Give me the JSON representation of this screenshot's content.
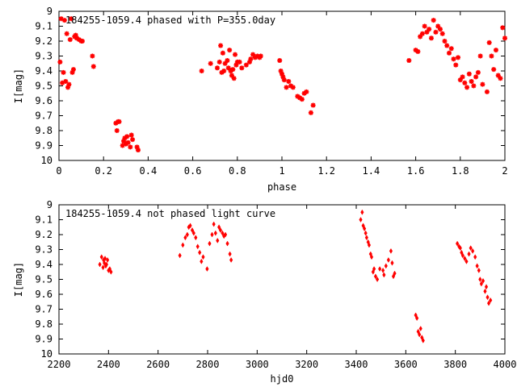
{
  "chart_data": [
    {
      "type": "scatter",
      "title": "184255-1059.4 phased with P=355.0day",
      "xlabel": "phase",
      "ylabel": "I[mag]",
      "xlim": [
        0,
        2
      ],
      "ylim": [
        10,
        9
      ],
      "y_inverted": true,
      "x_ticks": [
        "0",
        "0.2",
        "0.4",
        "0.6",
        "0.8",
        "1",
        "1.2",
        "1.4",
        "1.6",
        "1.8",
        "2"
      ],
      "x_tick_values": [
        0,
        0.2,
        0.4,
        0.6,
        0.8,
        1.0,
        1.2,
        1.4,
        1.6,
        1.8,
        2.0
      ],
      "y_ticks": [
        "9",
        "9.1",
        "9.2",
        "9.3",
        "9.4",
        "9.5",
        "9.6",
        "9.7",
        "9.8",
        "9.9",
        "10"
      ],
      "y_tick_values": [
        9,
        9.1,
        9.2,
        9.3,
        9.4,
        9.5,
        9.6,
        9.7,
        9.8,
        9.9,
        10
      ],
      "grid": false,
      "marker": "cross",
      "color": "#ff0000",
      "x": [
        0.005,
        0.01,
        0.015,
        0.02,
        0.025,
        0.03,
        0.035,
        0.04,
        0.045,
        0.05,
        0.055,
        0.06,
        0.065,
        0.07,
        0.075,
        0.08,
        0.09,
        0.1,
        0.105,
        0.15,
        0.155,
        0.255,
        0.26,
        0.265,
        0.27,
        0.285,
        0.29,
        0.295,
        0.3,
        0.305,
        0.31,
        0.32,
        0.325,
        0.33,
        0.35,
        0.355,
        0.64,
        0.68,
        0.71,
        0.72,
        0.725,
        0.73,
        0.735,
        0.74,
        0.745,
        0.755,
        0.76,
        0.765,
        0.77,
        0.775,
        0.78,
        0.785,
        0.79,
        0.795,
        0.8,
        0.81,
        0.82,
        0.84,
        0.855,
        0.86,
        0.87,
        0.88,
        0.89,
        0.9,
        0.905,
        0.99,
        0.995,
        1.0,
        1.005,
        1.01,
        1.02,
        1.03,
        1.04,
        1.05,
        1.07,
        1.08,
        1.09,
        1.1,
        1.11,
        1.13,
        1.14,
        1.57,
        1.6,
        1.61,
        1.62,
        1.63,
        1.64,
        1.65,
        1.66,
        1.67,
        1.68,
        1.69,
        1.7,
        1.71,
        1.72,
        1.73,
        1.74,
        1.75,
        1.76,
        1.77,
        1.78,
        1.79,
        1.8,
        1.81,
        1.82,
        1.83,
        1.84,
        1.85,
        1.86,
        1.87,
        1.88,
        1.89,
        1.9,
        1.92,
        1.93,
        1.94,
        1.95,
        1.96,
        1.97,
        1.98,
        1.99,
        2.0
      ],
      "y": [
        9.34,
        9.05,
        9.48,
        9.41,
        9.06,
        9.47,
        9.15,
        9.51,
        9.49,
        9.19,
        9.05,
        9.41,
        9.39,
        9.17,
        9.16,
        9.18,
        9.19,
        9.2,
        9.2,
        9.3,
        9.37,
        9.75,
        9.8,
        9.74,
        9.74,
        9.9,
        9.87,
        9.85,
        9.89,
        9.84,
        9.88,
        9.91,
        9.83,
        9.86,
        9.91,
        9.93,
        9.4,
        9.35,
        9.38,
        9.34,
        9.23,
        9.41,
        9.28,
        9.4,
        9.35,
        9.33,
        9.38,
        9.26,
        9.4,
        9.43,
        9.39,
        9.45,
        9.29,
        9.36,
        9.34,
        9.34,
        9.38,
        9.36,
        9.34,
        9.32,
        9.29,
        9.31,
        9.3,
        9.31,
        9.3,
        9.33,
        9.4,
        9.42,
        9.44,
        9.46,
        9.51,
        9.47,
        9.5,
        9.51,
        9.57,
        9.58,
        9.59,
        9.55,
        9.54,
        9.68,
        9.63,
        9.33,
        9.26,
        9.27,
        9.17,
        9.15,
        9.1,
        9.14,
        9.12,
        9.18,
        9.06,
        9.14,
        9.1,
        9.12,
        9.15,
        9.2,
        9.23,
        9.28,
        9.25,
        9.32,
        9.36,
        9.31,
        9.46,
        9.44,
        9.48,
        9.51,
        9.42,
        9.47,
        9.5,
        9.44,
        9.41,
        9.3,
        9.49,
        9.54,
        9.21,
        9.3,
        9.39,
        9.26,
        9.43,
        9.45,
        9.11,
        9.18
      ]
    },
    {
      "type": "scatter",
      "title": "184255-1059.4 not phased light curve",
      "xlabel": "hjd0",
      "ylabel": "I[mag]",
      "xlim": [
        2200,
        4000
      ],
      "ylim": [
        10,
        9
      ],
      "y_inverted": true,
      "x_ticks": [
        "2200",
        "2400",
        "2600",
        "2800",
        "3000",
        "3200",
        "3400",
        "3600",
        "3800",
        "4000"
      ],
      "x_tick_values": [
        2200,
        2400,
        2600,
        2800,
        3000,
        3200,
        3400,
        3600,
        3800,
        4000
      ],
      "y_ticks": [
        "9",
        "9.1",
        "9.2",
        "9.3",
        "9.4",
        "9.5",
        "9.6",
        "9.7",
        "9.8",
        "9.9",
        "10"
      ],
      "y_tick_values": [
        9,
        9.1,
        9.2,
        9.3,
        9.4,
        9.5,
        9.6,
        9.7,
        9.8,
        9.9,
        10
      ],
      "grid": false,
      "marker": "diamond",
      "color": "#ff0000",
      "x": [
        2365,
        2372,
        2378,
        2380,
        2383,
        2386,
        2389,
        2392,
        2396,
        2400,
        2405,
        2410,
        2688,
        2700,
        2710,
        2718,
        2724,
        2730,
        2738,
        2744,
        2752,
        2760,
        2768,
        2775,
        2782,
        2798,
        2808,
        2818,
        2825,
        2832,
        2840,
        2846,
        2852,
        2860,
        2866,
        2872,
        2880,
        2890,
        2895,
        3418,
        3424,
        3428,
        3433,
        3438,
        3442,
        3448,
        3452,
        3458,
        3462,
        3468,
        3472,
        3478,
        3485,
        3495,
        3508,
        3512,
        3520,
        3530,
        3540,
        3545,
        3550,
        3555,
        3640,
        3645,
        3650,
        3655,
        3660,
        3665,
        3670,
        3808,
        3815,
        3820,
        3825,
        3830,
        3838,
        3845,
        3855,
        3862,
        3870,
        3880,
        3888,
        3895,
        3900,
        3905,
        3912,
        3920,
        3925,
        3930,
        3935,
        3942
      ],
      "y": [
        9.4,
        9.35,
        9.42,
        9.37,
        9.39,
        9.36,
        9.41,
        9.4,
        9.37,
        9.44,
        9.43,
        9.45,
        9.34,
        9.27,
        9.22,
        9.2,
        9.15,
        9.14,
        9.17,
        9.19,
        9.22,
        9.28,
        9.32,
        9.38,
        9.35,
        9.43,
        9.26,
        9.2,
        9.13,
        9.19,
        9.24,
        9.15,
        9.17,
        9.19,
        9.21,
        9.2,
        9.26,
        9.33,
        9.37,
        9.1,
        9.05,
        9.14,
        9.16,
        9.19,
        9.22,
        9.25,
        9.27,
        9.33,
        9.35,
        9.45,
        9.43,
        9.48,
        9.5,
        9.43,
        9.44,
        9.47,
        9.41,
        9.37,
        9.31,
        9.39,
        9.48,
        9.46,
        9.74,
        9.76,
        9.85,
        9.87,
        9.83,
        9.89,
        9.91,
        9.26,
        9.28,
        9.29,
        9.32,
        9.34,
        9.36,
        9.38,
        9.33,
        9.29,
        9.31,
        9.35,
        9.41,
        9.44,
        9.5,
        9.53,
        9.51,
        9.58,
        9.55,
        9.62,
        9.66,
        9.64
      ]
    }
  ]
}
